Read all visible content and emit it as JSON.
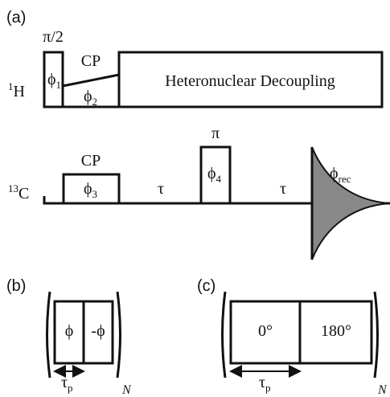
{
  "panel_a": {
    "label": "(a)",
    "h_channel": {
      "label": {
        "sup": "1",
        "base": "H"
      },
      "pulse_label": "π/2",
      "pulse_phase": {
        "base": "ϕ",
        "sub": "1"
      },
      "cp_label": "CP",
      "cp_phase": {
        "base": "ϕ",
        "sub": "2"
      },
      "decoupling": "Heteronuclear Decoupling"
    },
    "c_channel": {
      "label": {
        "sup": "13",
        "base": "C"
      },
      "cp_label": "CP",
      "cp_phase": {
        "base": "ϕ",
        "sub": "3"
      },
      "delay_1": "τ",
      "pulse_label": "π",
      "pulse_phase": {
        "base": "ϕ",
        "sub": "4"
      },
      "delay_2": "τ",
      "receiver_phase": {
        "base": "ϕ",
        "sub": "rec"
      }
    }
  },
  "panel_b": {
    "label": "(b)",
    "phases": [
      "ϕ",
      "-ϕ"
    ],
    "pulse_width": {
      "base": "τ",
      "sub": "p"
    },
    "repeat": "N"
  },
  "panel_c": {
    "label": "(c)",
    "phases": [
      "0°",
      "180°"
    ],
    "pulse_width": {
      "base": "τ",
      "sub": "p"
    },
    "repeat": "N"
  }
}
